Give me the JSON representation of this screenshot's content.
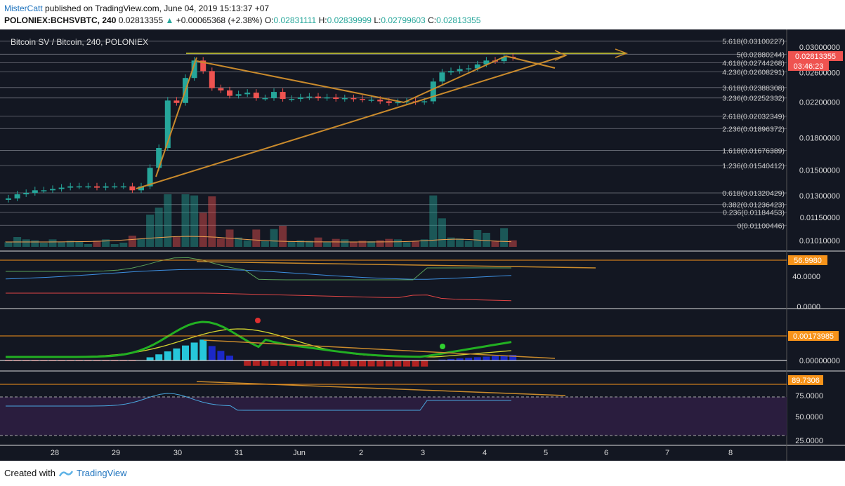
{
  "header": {
    "user": "MisterCatt",
    "published": "published on TradingView.com, June 04, 2019 15:13:37 +07"
  },
  "ticker": {
    "symbol": "POLONIEX:BCHSVBTC, 240",
    "price": "0.02813355",
    "change": "+0.00065368 (+2.38%)",
    "o_label": "O:",
    "o": "0.02831111",
    "h_label": "H:",
    "h": "0.02839999",
    "l_label": "L:",
    "l": "0.02799603",
    "c_label": "C:",
    "c": "0.02813355"
  },
  "chart_title": "Bitcoin SV / Bitcoin, 240, POLONIEX",
  "colors": {
    "bg": "#131722",
    "up": "#26a69a",
    "down": "#ef5350",
    "fib": "#9598a1",
    "trend": "#c98a2c",
    "yellow": "#d4d430",
    "pricebox": "#ef5350",
    "orangebox": "#f7931a",
    "purplezone": "#2a1d3e"
  },
  "price_axis": [
    "0.03000000",
    "0.02600000",
    "0.02200000",
    "0.01800000",
    "0.01500000",
    "0.01300000",
    "0.01150000",
    "0.01010000"
  ],
  "price_label": "0.02813355",
  "countdown": "03:46:23",
  "fib_levels": [
    {
      "label": "5.618(0.03100227)"
    },
    {
      "label": "5(0.02880244)"
    },
    {
      "label": "4.618(0.02744268)"
    },
    {
      "label": "4.236(0.02608291)"
    },
    {
      "label": "3.618(0.02388308)"
    },
    {
      "label": "3.236(0.02252332)"
    },
    {
      "label": "2.618(0.02032349)"
    },
    {
      "label": "2.236(0.01896372)"
    },
    {
      "label": "1.618(0.01676389)"
    },
    {
      "label": "1.236(0.01540412)"
    },
    {
      "label": "0.618(0.01320429)"
    },
    {
      "label": "0.382(0.01236423)"
    },
    {
      "label": "0.236(0.01184453)"
    },
    {
      "label": "0(0.01100446)"
    }
  ],
  "ind1_axis": [
    "40.0000",
    "0.0000"
  ],
  "ind1_box": "56.9980",
  "ind2_axis": [
    "0.00000000"
  ],
  "ind2_box": "0.00173985",
  "ind3_axis": [
    "75.0000",
    "50.0000",
    "25.0000"
  ],
  "ind3_box": "89.7306",
  "time_axis": [
    "28",
    "29",
    "30",
    "31",
    "Jun",
    "2",
    "3",
    "4",
    "5",
    "6",
    "7",
    "8"
  ],
  "footer": {
    "created": "Created with",
    "brand": "TradingView"
  },
  "chart_data": {
    "type": "candlestick",
    "title": "Bitcoin SV / Bitcoin, 240, POLONIEX",
    "candles_close_approx": [
      0.0128,
      0.0131,
      0.0132,
      0.0134,
      0.0134,
      0.0135,
      0.0136,
      0.0137,
      0.0137,
      0.0137,
      0.0136,
      0.0137,
      0.0137,
      0.0137,
      0.0134,
      0.0137,
      0.0152,
      0.017,
      0.0222,
      0.0219,
      0.0252,
      0.0278,
      0.0262,
      0.0238,
      0.0235,
      0.0228,
      0.023,
      0.0232,
      0.0225,
      0.0225,
      0.0233,
      0.0224,
      0.0224,
      0.0226,
      0.0227,
      0.0225,
      0.0226,
      0.0224,
      0.0225,
      0.0224,
      0.0223,
      0.0223,
      0.0221,
      0.0219,
      0.022,
      0.0221,
      0.022,
      0.0221,
      0.0247,
      0.026,
      0.0262,
      0.0265,
      0.0266,
      0.0272,
      0.0278,
      0.0277,
      0.0284,
      0.0282
    ],
    "ind1_last": 56.998,
    "ind2_last": 0.00173985,
    "ind3_last": 89.7306
  }
}
